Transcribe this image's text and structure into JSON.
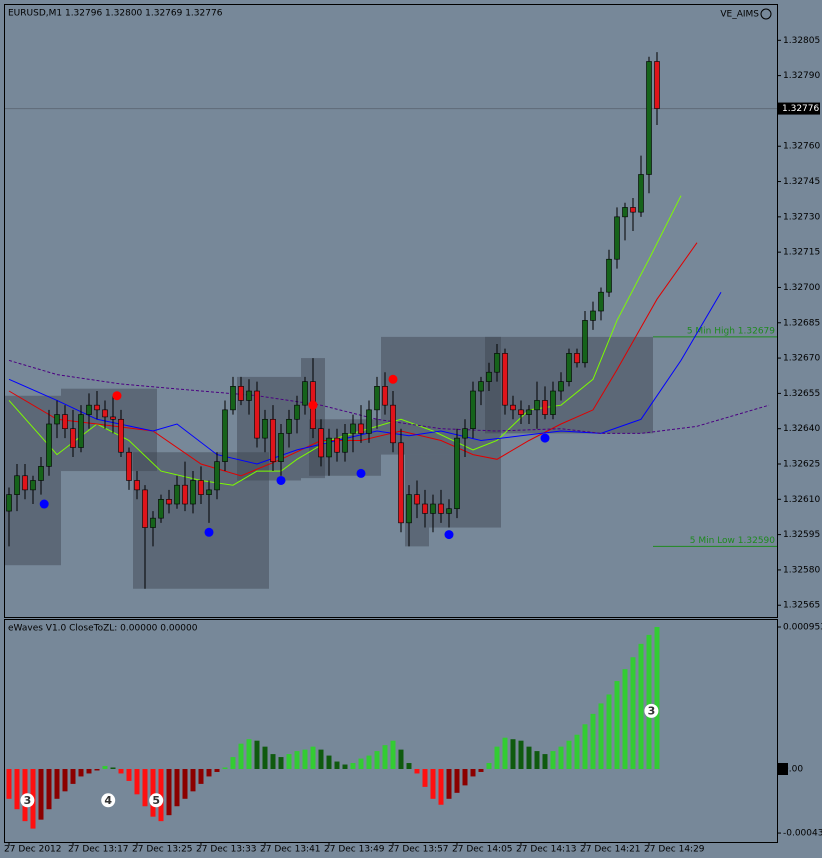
{
  "header": {
    "symbol_info": "EURUSD,M1  1.32796 1.32800 1.32769 1.32776",
    "expert": "VE_AIMS"
  },
  "chart_data": [
    {
      "type": "candlestick",
      "xlim": [
        -0.5,
        96
      ],
      "ylim": [
        1.3256,
        1.3282
      ],
      "yticks": [
        1.32805,
        {
          "value": 1.3279,
          "label": "1.32790"
        },
        {
          "value": 1.3276,
          "label": "1.32760"
        },
        1.32745,
        {
          "value": 1.3273,
          "label": "1.32730"
        },
        1.32715,
        {
          "value": 1.327,
          "label": "1.32700"
        },
        1.32685,
        {
          "value": 1.3267,
          "label": "1.32670"
        },
        1.32655,
        {
          "value": 1.3264,
          "label": "1.32640"
        },
        1.32625,
        {
          "value": 1.3261,
          "label": "1.32610"
        },
        1.32595,
        {
          "value": 1.3258,
          "label": "1.32580"
        },
        1.32565
      ],
      "current_price": 1.32776,
      "up_color": "#16631a",
      "down_color": "#e0141a",
      "open": [
        1.32605,
        1.32612,
        1.3262,
        1.32614,
        1.32618,
        1.32624,
        1.32642,
        1.32646,
        1.3264,
        1.32632,
        1.32646,
        1.3265,
        1.32648,
        1.32645,
        1.32644,
        1.3263,
        1.32618,
        1.32614,
        1.32598,
        1.32602,
        1.3261,
        1.32608,
        1.32616,
        1.32608,
        1.32618,
        1.32612,
        1.32614,
        1.32626,
        1.32648,
        1.32658,
        1.32652,
        1.32656,
        1.32636,
        1.32644,
        1.32626,
        1.32638,
        1.32644,
        1.3265,
        1.3266,
        1.3264,
        1.32628,
        1.32636,
        1.3263,
        1.32638,
        1.32642,
        1.32638,
        1.32648,
        1.32658,
        1.3265,
        1.32634,
        1.326,
        1.32612,
        1.32608,
        1.32604,
        1.32608,
        1.32604,
        1.32606,
        1.32636,
        1.3264,
        1.32656,
        1.3266,
        1.32664,
        1.32672,
        1.3265,
        1.32648,
        1.32646,
        1.32648,
        1.32652,
        1.32646,
        1.32656,
        1.3266,
        1.32672,
        1.32668,
        1.32686,
        1.3269,
        1.32698,
        1.32712,
        1.3273,
        1.32734,
        1.32732,
        1.32748,
        1.32796
      ],
      "high": [
        1.32615,
        1.32625,
        1.32625,
        1.3262,
        1.32628,
        1.32648,
        1.32652,
        1.3265,
        1.32648,
        1.3265,
        1.32655,
        1.32656,
        1.32652,
        1.32654,
        1.32648,
        1.32632,
        1.32622,
        1.32616,
        1.32605,
        1.32612,
        1.32614,
        1.3262,
        1.32626,
        1.32622,
        1.32624,
        1.32618,
        1.3263,
        1.32652,
        1.32662,
        1.32662,
        1.32661,
        1.3266,
        1.32648,
        1.3265,
        1.32642,
        1.32648,
        1.32654,
        1.32662,
        1.3267,
        1.32644,
        1.3264,
        1.3264,
        1.32642,
        1.32646,
        1.3265,
        1.32652,
        1.32662,
        1.32664,
        1.32656,
        1.3264,
        1.32616,
        1.32618,
        1.32614,
        1.32612,
        1.32614,
        1.3261,
        1.3264,
        1.32644,
        1.3266,
        1.32662,
        1.32668,
        1.32676,
        1.32674,
        1.32654,
        1.32652,
        1.3265,
        1.3266,
        1.32658,
        1.3266,
        1.32664,
        1.32674,
        1.32674,
        1.3269,
        1.32694,
        1.327,
        1.32716,
        1.32734,
        1.32736,
        1.32738,
        1.32756,
        1.32798,
        1.328
      ],
      "low": [
        1.3259,
        1.32605,
        1.3261,
        1.32608,
        1.32612,
        1.3262,
        1.32636,
        1.32636,
        1.32628,
        1.3263,
        1.3264,
        1.32644,
        1.3264,
        1.32638,
        1.32628,
        1.32614,
        1.3261,
        1.32572,
        1.3259,
        1.326,
        1.32604,
        1.32606,
        1.32605,
        1.32604,
        1.32608,
        1.326,
        1.3261,
        1.32622,
        1.32646,
        1.3265,
        1.32646,
        1.32632,
        1.3263,
        1.32622,
        1.3262,
        1.32632,
        1.32638,
        1.32646,
        1.32636,
        1.32624,
        1.3262,
        1.32626,
        1.32626,
        1.3263,
        1.32634,
        1.32634,
        1.3264,
        1.32646,
        1.3263,
        1.32596,
        1.3259,
        1.32602,
        1.32598,
        1.32596,
        1.326,
        1.32598,
        1.32602,
        1.32628,
        1.32636,
        1.3265,
        1.32656,
        1.3266,
        1.32646,
        1.32644,
        1.32642,
        1.32642,
        1.3264,
        1.32644,
        1.32644,
        1.32652,
        1.32658,
        1.32666,
        1.32666,
        1.32682,
        1.32686,
        1.32696,
        1.32708,
        1.3272,
        1.32724,
        1.3273,
        1.3274,
        1.32769
      ],
      "close": [
        1.32612,
        1.3262,
        1.32614,
        1.32618,
        1.32624,
        1.32642,
        1.32646,
        1.3264,
        1.32632,
        1.32646,
        1.3265,
        1.32648,
        1.32645,
        1.32644,
        1.3263,
        1.32618,
        1.32614,
        1.32598,
        1.32602,
        1.3261,
        1.32608,
        1.32616,
        1.32608,
        1.32618,
        1.32612,
        1.32614,
        1.32626,
        1.32648,
        1.32658,
        1.32652,
        1.32656,
        1.32636,
        1.32644,
        1.32626,
        1.32638,
        1.32644,
        1.3265,
        1.3266,
        1.3264,
        1.32628,
        1.32636,
        1.3263,
        1.32638,
        1.32642,
        1.32638,
        1.32648,
        1.32658,
        1.3265,
        1.32634,
        1.326,
        1.32612,
        1.32608,
        1.32604,
        1.32608,
        1.32604,
        1.32606,
        1.32636,
        1.3264,
        1.32656,
        1.3266,
        1.32664,
        1.32672,
        1.3265,
        1.32648,
        1.32646,
        1.32648,
        1.32652,
        1.32646,
        1.32656,
        1.3266,
        1.32672,
        1.32668,
        1.32686,
        1.3269,
        1.32698,
        1.32712,
        1.3273,
        1.32734,
        1.32732,
        1.32748,
        1.32796,
        1.32776
      ],
      "lines": [
        {
          "color": "#7CFC00",
          "dash": false,
          "x": [
            0,
            6,
            11,
            15,
            19,
            24,
            28,
            31,
            34,
            36,
            40,
            44,
            49,
            53,
            58,
            61,
            65,
            69,
            73,
            76,
            80,
            84
          ],
          "values": [
            1.32652,
            1.32629,
            1.32642,
            1.32635,
            1.32622,
            1.32618,
            1.32616,
            1.32622,
            1.32622,
            1.32627,
            1.32635,
            1.32639,
            1.32644,
            1.32639,
            1.32631,
            1.32635,
            1.32648,
            1.3265,
            1.32661,
            1.32686,
            1.32712,
            1.32739
          ]
        },
        {
          "color": "#e00000",
          "dash": false,
          "x": [
            0,
            6,
            11,
            18,
            24,
            29,
            34,
            39,
            44,
            49,
            54,
            58,
            61,
            65,
            69,
            73,
            76,
            81,
            86
          ],
          "values": [
            1.32656,
            1.32644,
            1.32642,
            1.32639,
            1.32625,
            1.3262,
            1.32627,
            1.32635,
            1.32635,
            1.32639,
            1.32635,
            1.32629,
            1.32627,
            1.32635,
            1.32642,
            1.32648,
            1.32665,
            1.32695,
            1.32719
          ]
        },
        {
          "color": "#0000ff",
          "dash": false,
          "x": [
            0,
            6,
            11,
            18,
            21,
            26,
            31,
            36,
            41,
            46,
            50,
            54,
            59,
            64,
            69,
            74,
            79,
            84,
            89
          ],
          "values": [
            1.32661,
            1.32652,
            1.32644,
            1.32639,
            1.32642,
            1.32629,
            1.32625,
            1.32631,
            1.32635,
            1.32639,
            1.32637,
            1.32639,
            1.32635,
            1.32637,
            1.32639,
            1.32638,
            1.32644,
            1.32669,
            1.32698
          ]
        },
        {
          "color": "#4b0082",
          "dash": true,
          "x": [
            0,
            6,
            14,
            24,
            31,
            39,
            46,
            54,
            61,
            69,
            74,
            79,
            86,
            91,
            95
          ],
          "values": [
            1.32669,
            1.32663,
            1.32659,
            1.32656,
            1.32654,
            1.3265,
            1.32644,
            1.3264,
            1.32639,
            1.3264,
            1.32638,
            1.32638,
            1.32641,
            1.32646,
            1.3265
          ]
        }
      ],
      "boxes": [
        {
          "x": [
            -0.5,
            6.5
          ],
          "y": [
            1.32582,
            1.32654
          ]
        },
        {
          "x": [
            6.5,
            18.5
          ],
          "y": [
            1.32622,
            1.32657
          ]
        },
        {
          "x": [
            15.5,
            32.5
          ],
          "y": [
            1.32572,
            1.3263
          ]
        },
        {
          "x": [
            28.5,
            36.5
          ],
          "y": [
            1.32618,
            1.32662
          ]
        },
        {
          "x": [
            36.5,
            39.5
          ],
          "y": [
            1.32619,
            1.3267
          ]
        },
        {
          "x": [
            37.5,
            46.5
          ],
          "y": [
            1.3262,
            1.32644
          ]
        },
        {
          "x": [
            46.5,
            61.5
          ],
          "y": [
            1.32629,
            1.32679
          ]
        },
        {
          "x": [
            49.5,
            52.5
          ],
          "y": [
            1.3259,
            1.32629
          ]
        },
        {
          "x": [
            52.5,
            61.5
          ],
          "y": [
            1.32598,
            1.32629
          ]
        },
        {
          "x": [
            59.5,
            80.5
          ],
          "y": [
            1.32638,
            1.32679
          ]
        }
      ],
      "dots": [
        {
          "x": 4.4,
          "value": 1.32608,
          "color": "#0000ff"
        },
        {
          "x": 25,
          "value": 1.32596,
          "color": "#0000ff"
        },
        {
          "x": 34,
          "value": 1.32618,
          "color": "#0000ff"
        },
        {
          "x": 44,
          "value": 1.32621,
          "color": "#0000ff"
        },
        {
          "x": 55,
          "value": 1.32595,
          "color": "#0000ff"
        },
        {
          "x": 67,
          "value": 1.32636,
          "color": "#0000ff"
        },
        {
          "x": 13.5,
          "value": 1.32654,
          "color": "#ff0000"
        },
        {
          "x": 38,
          "value": 1.3265,
          "color": "#ff0000"
        },
        {
          "x": 48,
          "value": 1.32661,
          "color": "#ff0000"
        }
      ],
      "levels": [
        {
          "label": "5 Min High  1.32679",
          "value": 1.32679,
          "from": 80.5,
          "color": "#1f8a1f"
        },
        {
          "label": "5 Min Low  1.32590",
          "value": 1.3259,
          "from": 80.5,
          "color": "#1f8a1f"
        }
      ]
    },
    {
      "type": "bar",
      "subtitle": "eWaves V1.0 CloseToZL: 0.00000 0.00000",
      "xlim": [
        -0.5,
        96
      ],
      "ylim": [
        -0.00049,
        0.001
      ],
      "yticks": [
        0.000953,
        {
          "value": 0,
          "label": "0.00"
        },
        -0.00043
      ],
      "colors": {
        "up_strong": "#33cc33",
        "up_weak": "#0f5a0f",
        "down_strong": "#ff1010",
        "down_weak": "#8b0000"
      },
      "categories": [
        "27 Dec 2012",
        null,
        null,
        null,
        null,
        null,
        null,
        null,
        "27 Dec 13:17",
        null,
        null,
        null,
        null,
        null,
        null,
        null,
        "27 Dec 13:25",
        null,
        null,
        null,
        null,
        null,
        null,
        null,
        "27 Dec 13:33",
        null,
        null,
        null,
        null,
        null,
        null,
        null,
        "27 Dec 13:41",
        null,
        null,
        null,
        null,
        null,
        null,
        null,
        "27 Dec 13:49",
        null,
        null,
        null,
        null,
        null,
        null,
        null,
        "27 Dec 13:57",
        null,
        null,
        null,
        null,
        null,
        null,
        null,
        "27 Dec 14:05",
        null,
        null,
        null,
        null,
        null,
        null,
        null,
        "27 Dec 14:13",
        null,
        null,
        null,
        null,
        null,
        null,
        null,
        "27 Dec 14:21",
        null,
        null,
        null,
        null,
        null,
        null,
        null,
        "27 Dec 14:29",
        null
      ],
      "values": [
        -0.0002,
        -0.00027,
        -0.00035,
        -0.0004,
        -0.00034,
        -0.00027,
        -0.0002,
        -0.00015,
        -0.0001,
        -5e-05,
        -3e-05,
        -1e-05,
        2e-05,
        1e-05,
        -3e-05,
        -8e-05,
        -0.00017,
        -0.00025,
        -0.00032,
        -0.00035,
        -0.00031,
        -0.00025,
        -0.0002,
        -0.00015,
        -0.0001,
        -5e-05,
        -2e-05,
        1e-05,
        8e-05,
        0.00017,
        0.0002,
        0.00019,
        0.00015,
        0.0001,
        8e-05,
        0.0001,
        0.00012,
        0.00013,
        0.00015,
        0.00013,
        9e-05,
        5e-05,
        3e-05,
        4e-05,
        7e-05,
        9e-05,
        0.00012,
        0.00016,
        0.00019,
        0.00013,
        4e-05,
        -3e-05,
        -0.00012,
        -0.0002,
        -0.00024,
        -0.0002,
        -0.00016,
        -0.00011,
        -5e-05,
        -2e-05,
        4e-05,
        0.00015,
        0.00021,
        0.0002,
        0.00019,
        0.00015,
        0.00012,
        0.0001,
        0.00012,
        0.00015,
        0.00019,
        0.00023,
        0.0003,
        0.00037,
        0.00044,
        0.0005,
        0.00059,
        0.00067,
        0.00075,
        0.00084,
        0.0009,
        0.000953
      ],
      "annotations": [
        {
          "text": "3",
          "x": 2.3,
          "y": -0.00021
        },
        {
          "text": "4",
          "x": 12.4,
          "y": -0.00021
        },
        {
          "text": "5",
          "x": 18.4,
          "y": -0.00021
        },
        {
          "text": "3",
          "x": 80.3,
          "y": 0.00039
        }
      ]
    }
  ]
}
